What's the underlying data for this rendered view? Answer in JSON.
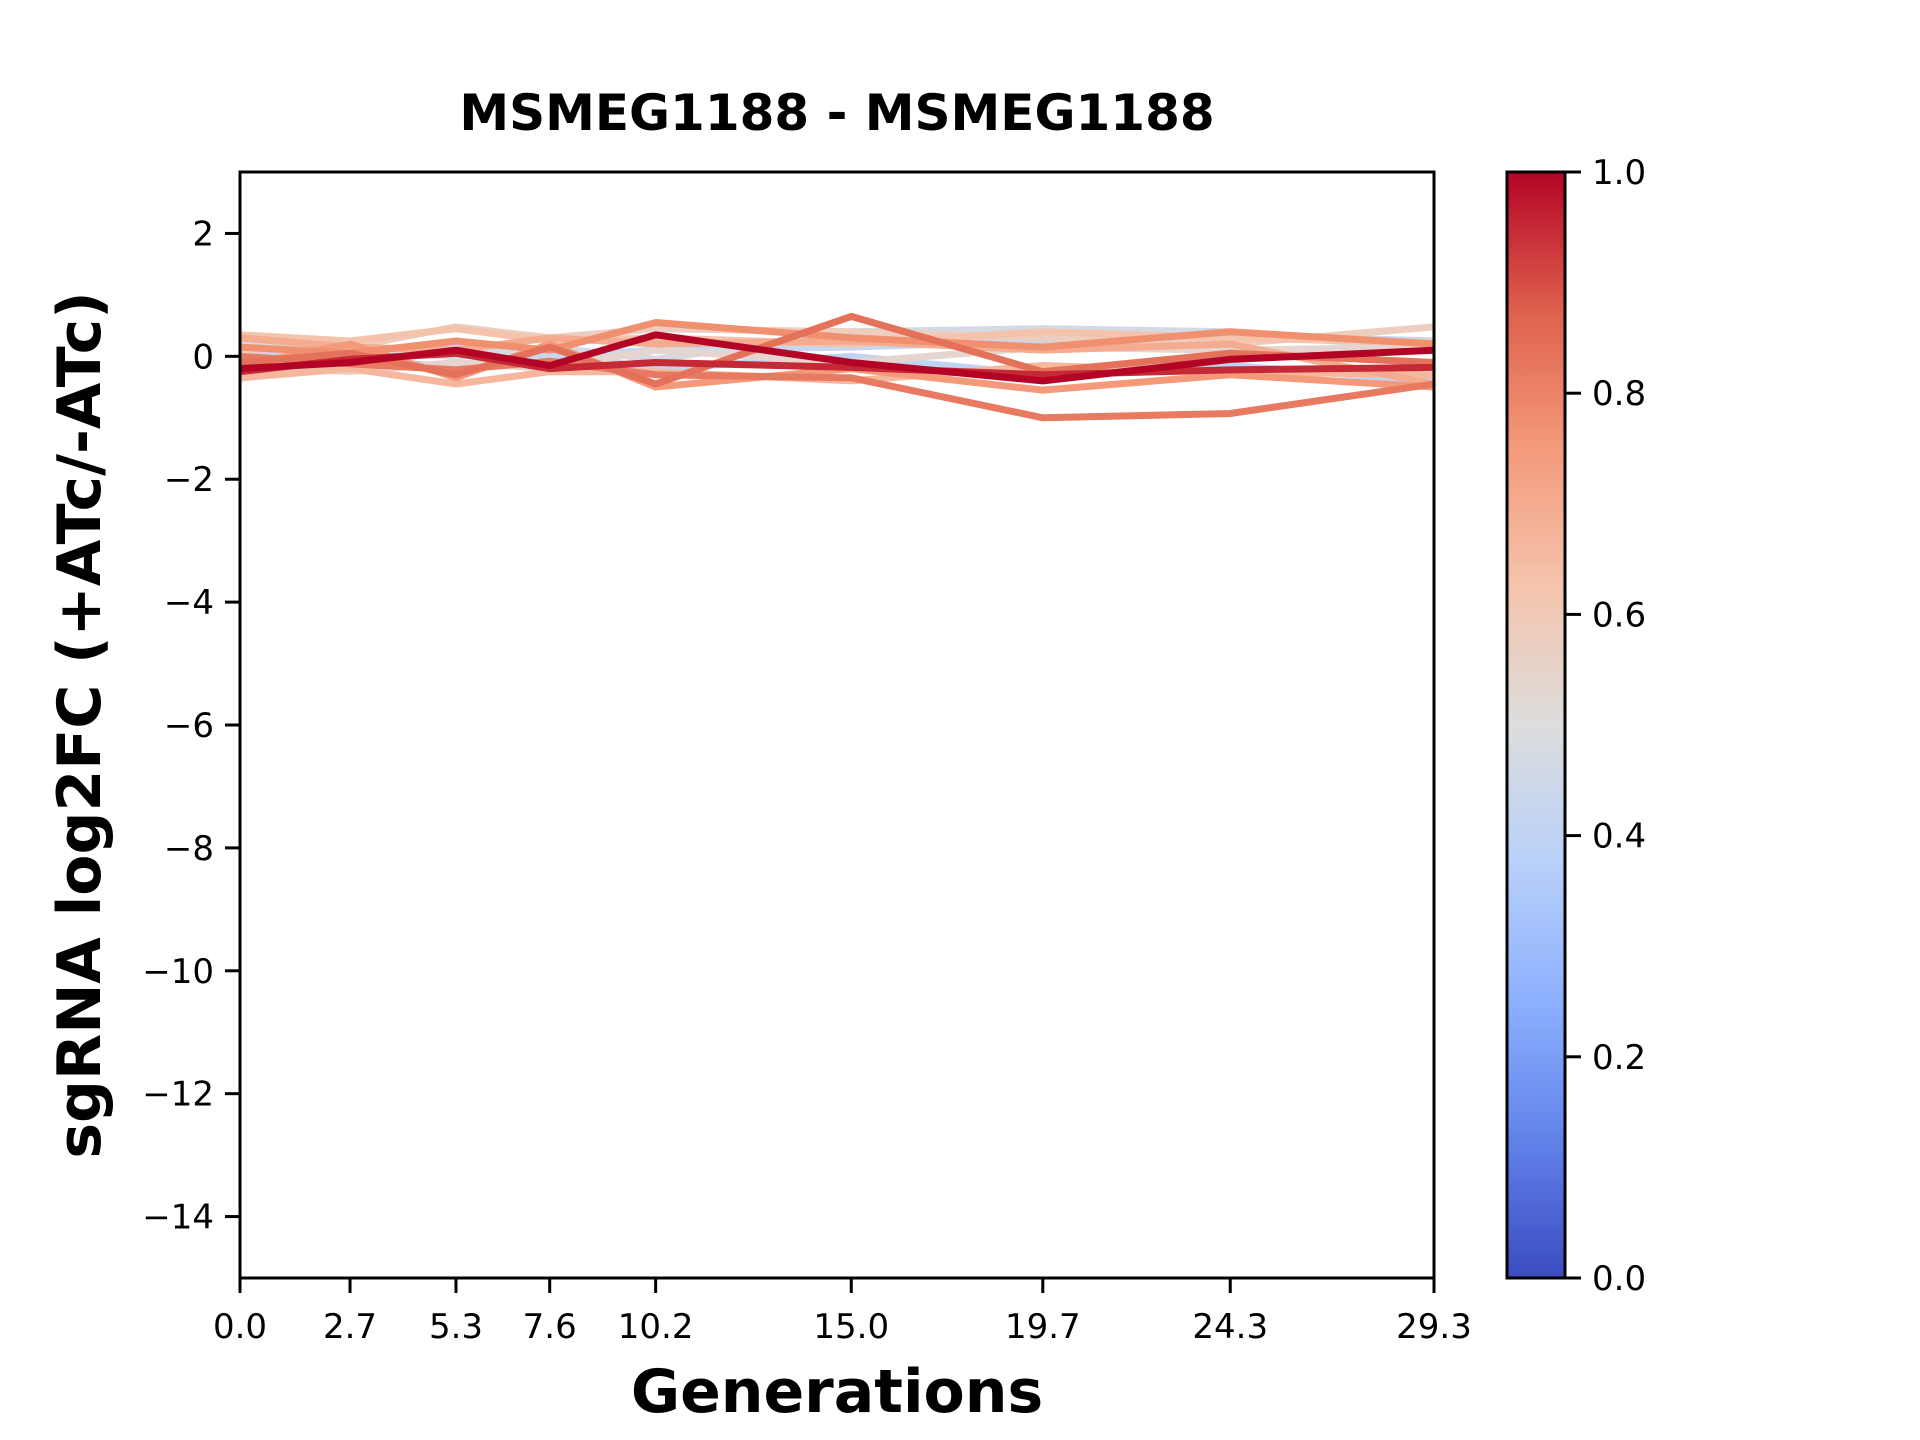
{
  "figure": {
    "background": "#ffffff"
  },
  "chart_data": {
    "type": "line",
    "title": "MSMEG1188 - MSMEG1188",
    "xlabel": "Generations",
    "ylabel": "sgRNA log2FC (+ATc/-ATc)",
    "xlim": [
      0,
      29.3
    ],
    "ylim": [
      -15,
      3
    ],
    "grid": false,
    "legend": "none",
    "x": [
      0.0,
      2.7,
      5.3,
      7.6,
      10.2,
      15.0,
      19.7,
      24.3,
      29.3
    ],
    "x_tick_labels": [
      "0.0",
      "2.7",
      "5.3",
      "7.6",
      "10.2",
      "15.0",
      "19.7",
      "24.3",
      "29.3"
    ],
    "y_ticks": [
      2,
      0,
      -2,
      -4,
      -6,
      -8,
      -10,
      -12,
      -14
    ],
    "y_tick_labels": [
      "2",
      "0",
      "−2",
      "−4",
      "−6",
      "−8",
      "−10",
      "−12",
      "−14"
    ],
    "line_width": 7,
    "series": [
      {
        "colormap_value": 0.4,
        "color": "#BFD3F3",
        "values": [
          0.05,
          -0.1,
          -0.15,
          0.05,
          -0.2,
          0.0,
          -0.3,
          -0.15,
          -0.4
        ]
      },
      {
        "colormap_value": 0.43,
        "color": "#C8D6EC",
        "values": [
          -0.05,
          0.05,
          0.2,
          0.0,
          0.1,
          0.15,
          0.25,
          0.35,
          0.25
        ]
      },
      {
        "colormap_value": 0.47,
        "color": "#D4DAE4",
        "values": [
          0.2,
          0.1,
          0.0,
          0.15,
          -0.05,
          0.4,
          0.45,
          0.4,
          0.1
        ]
      },
      {
        "colormap_value": 0.54,
        "color": "#E5D5CE",
        "values": [
          -0.15,
          -0.25,
          -0.1,
          -0.2,
          0.1,
          -0.1,
          0.15,
          0.1,
          0.15
        ]
      },
      {
        "colormap_value": 0.58,
        "color": "#ECCDBE",
        "values": [
          0.1,
          0.15,
          0.48,
          0.3,
          0.45,
          0.4,
          0.3,
          0.2,
          0.48
        ]
      },
      {
        "colormap_value": 0.63,
        "color": "#F5C2AB",
        "values": [
          0.35,
          0.25,
          0.45,
          0.25,
          0.3,
          0.2,
          0.4,
          0.3,
          0.22
        ]
      },
      {
        "colormap_value": 0.66,
        "color": "#F5B89F",
        "values": [
          -0.35,
          -0.2,
          -0.45,
          -0.25,
          -0.25,
          -0.4,
          -0.15,
          -0.25,
          -0.3
        ]
      },
      {
        "colormap_value": 0.7,
        "color": "#F4AB8F",
        "values": [
          0.3,
          0.15,
          0.1,
          0.3,
          0.2,
          0.25,
          0.1,
          0.2,
          -0.45
        ]
      },
      {
        "colormap_value": 0.75,
        "color": "#F49A7B",
        "values": [
          -0.15,
          0.2,
          -0.35,
          0.2,
          -0.5,
          -0.2,
          -0.55,
          -0.3,
          -0.5
        ]
      },
      {
        "colormap_value": 0.78,
        "color": "#F0906F",
        "values": [
          0.15,
          0.05,
          0.25,
          0.1,
          0.55,
          0.3,
          0.15,
          0.4,
          0.2
        ]
      },
      {
        "colormap_value": 0.82,
        "color": "#E87A61",
        "values": [
          0.0,
          -0.12,
          -0.22,
          -0.08,
          -0.3,
          -0.35,
          -1.0,
          -0.93,
          -0.45
        ]
      },
      {
        "colormap_value": 0.84,
        "color": "#E4715A",
        "values": [
          -0.1,
          0.05,
          -0.3,
          0.15,
          -0.45,
          0.65,
          -0.25,
          0.05,
          -0.1
        ]
      },
      {
        "colormap_value": 0.95,
        "color": "#C52936",
        "values": [
          -0.25,
          -0.05,
          0.05,
          -0.2,
          -0.1,
          -0.18,
          -0.3,
          -0.22,
          -0.18
        ]
      },
      {
        "colormap_value": 1.0,
        "color": "#B40426",
        "values": [
          -0.2,
          -0.1,
          0.1,
          -0.15,
          0.35,
          -0.1,
          -0.4,
          -0.05,
          0.1
        ]
      }
    ],
    "colorbar": {
      "orientation": "vertical",
      "colormap": "coolwarm",
      "range": [
        0.0,
        1.0
      ],
      "tick_values": [
        0.0,
        0.2,
        0.4,
        0.6,
        0.8,
        1.0
      ],
      "tick_labels": [
        "0.0",
        "0.2",
        "0.4",
        "0.6",
        "0.8",
        "1.0"
      ],
      "gradient_stops": [
        [
          0.0,
          "#3B4CC0"
        ],
        [
          0.125,
          "#6282EA"
        ],
        [
          0.25,
          "#8DB0FE"
        ],
        [
          0.375,
          "#B8D0F9"
        ],
        [
          0.5,
          "#DDDDDD"
        ],
        [
          0.625,
          "#F5C4AD"
        ],
        [
          0.75,
          "#F49A7B"
        ],
        [
          0.875,
          "#DE604D"
        ],
        [
          1.0,
          "#B40426"
        ]
      ]
    }
  }
}
